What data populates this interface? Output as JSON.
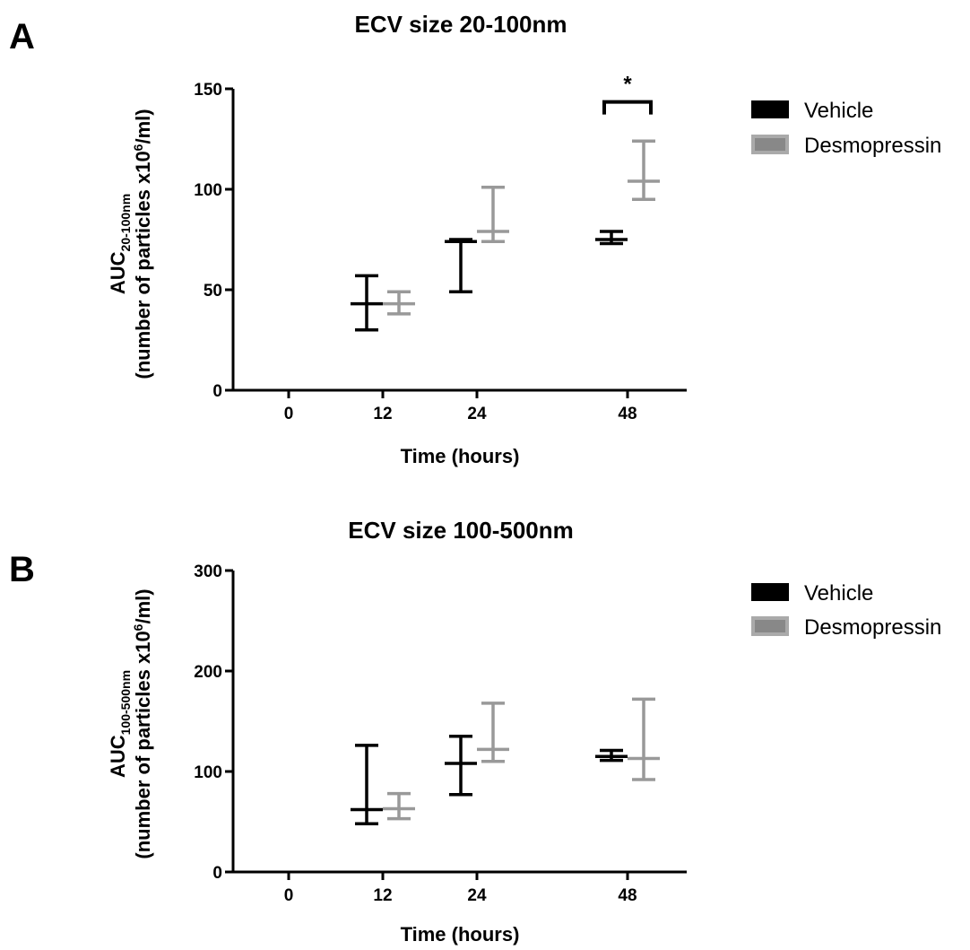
{
  "panels": [
    {
      "letter": "A",
      "title": "ECV size 20-100nm",
      "ylabel": {
        "line1_main": "AUC",
        "line1_sub": "20-100nm",
        "line2_pre": "(number of particles x10",
        "line2_sup": "6",
        "line2_post": "/ml)"
      },
      "annotation": "*"
    },
    {
      "letter": "B",
      "title": "ECV size 100-500nm",
      "ylabel": {
        "line1_main": "AUC",
        "line1_sub": "100-500nm",
        "line2_pre": "(number of particles x10",
        "line2_sup": "6",
        "line2_post": "/ml)"
      },
      "annotation": ""
    }
  ],
  "colors": {
    "vehicle": "#000000",
    "desmopressin": "#999999",
    "axis": "#000000"
  },
  "chart_data": [
    {
      "type": "scatter",
      "title": "ECV size 20-100nm",
      "xlabel": "Time (hours)",
      "ylabel": "AUC20-100nm (number of particles x10^6/ml)",
      "categories": [
        "0",
        "12",
        "24",
        "48"
      ],
      "ylim": [
        0,
        150
      ],
      "yticks": [
        0,
        50,
        100,
        150
      ],
      "legend_position": "right",
      "series": [
        {
          "name": "Vehicle",
          "color": "#000000",
          "points": [
            {
              "category": "12",
              "mean": 43,
              "low": 30,
              "high": 57
            },
            {
              "category": "24",
              "mean": 74,
              "low": 49,
              "high": 75
            },
            {
              "category": "48",
              "mean": 75,
              "low": 73,
              "high": 79
            }
          ]
        },
        {
          "name": "Desmopressin",
          "color": "#999999",
          "points": [
            {
              "category": "12",
              "mean": 43,
              "low": 38,
              "high": 49
            },
            {
              "category": "24",
              "mean": 79,
              "low": 74,
              "high": 101
            },
            {
              "category": "48",
              "mean": 104,
              "low": 95,
              "high": 124
            }
          ]
        }
      ],
      "annotations": [
        {
          "text": "*",
          "category": "48",
          "bracket_top": 143
        }
      ]
    },
    {
      "type": "scatter",
      "title": "ECV size 100-500nm",
      "xlabel": "Time (hours)",
      "ylabel": "AUC100-500nm (number of particles x10^6/ml)",
      "categories": [
        "0",
        "12",
        "24",
        "48"
      ],
      "ylim": [
        0,
        300
      ],
      "yticks": [
        0,
        100,
        200,
        300
      ],
      "legend_position": "right",
      "series": [
        {
          "name": "Vehicle",
          "color": "#000000",
          "points": [
            {
              "category": "12",
              "mean": 62,
              "low": 48,
              "high": 126
            },
            {
              "category": "24",
              "mean": 108,
              "low": 77,
              "high": 135
            },
            {
              "category": "48",
              "mean": 115,
              "low": 111,
              "high": 121
            }
          ]
        },
        {
          "name": "Desmopressin",
          "color": "#999999",
          "points": [
            {
              "category": "12",
              "mean": 63,
              "low": 53,
              "high": 78
            },
            {
              "category": "24",
              "mean": 122,
              "low": 110,
              "high": 168
            },
            {
              "category": "48",
              "mean": 113,
              "low": 92,
              "high": 172
            }
          ]
        }
      ],
      "annotations": []
    }
  ]
}
